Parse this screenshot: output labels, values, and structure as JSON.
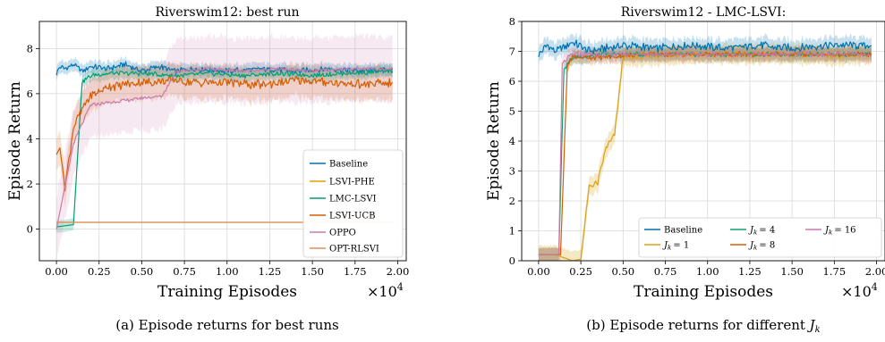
{
  "colors": {
    "Baseline": "#0072B2",
    "LSVI-PHE": "#E69F00",
    "LMC-LSVI": "#009E73",
    "LSVI-UCB": "#D55E00",
    "OPPO": "#CC79A7",
    "OPT-RLSVI": "#DE8F5F",
    "J1": "#D8A21A",
    "J4": "#14A070",
    "J8": "#D55E00",
    "J16": "#CC79A7"
  },
  "chart_data": [
    {
      "type": "line",
      "title": "Riverswim12: best run",
      "xlabel": "Training Episodes",
      "ylabel": "Episode Return",
      "x_multiplier": "×10",
      "x_multiplier_exp": "4",
      "xlim": [
        -0.1,
        2.05
      ],
      "ylim": [
        -1.4,
        9.2
      ],
      "xticks": [
        0.0,
        0.25,
        0.5,
        0.75,
        1.0,
        1.25,
        1.5,
        1.75,
        2.0
      ],
      "xtick_labels": [
        "0.00",
        "0.25",
        "0.50",
        "0.75",
        "1.00",
        "1.25",
        "1.50",
        "1.75",
        "2.00"
      ],
      "yticks": [
        0,
        2,
        4,
        6,
        8
      ],
      "ytick_labels": [
        "0",
        "2",
        "4",
        "6",
        "8"
      ],
      "grid": true,
      "legend_position": "lower-right",
      "series": [
        {
          "name": "Baseline",
          "points": [
            [
              0.0,
              6.9
            ],
            [
              0.02,
              7.2
            ],
            [
              0.05,
              7.1
            ],
            [
              0.1,
              7.3
            ],
            [
              0.15,
              7.0
            ],
            [
              0.2,
              7.2
            ],
            [
              0.3,
              7.1
            ],
            [
              0.4,
              7.3
            ],
            [
              0.5,
              7.0
            ],
            [
              0.6,
              7.2
            ],
            [
              0.7,
              7.0
            ],
            [
              0.8,
              7.1
            ],
            [
              1.0,
              7.0
            ],
            [
              1.2,
              7.1
            ],
            [
              1.4,
              7.0
            ],
            [
              1.6,
              7.1
            ],
            [
              1.8,
              7.0
            ],
            [
              1.97,
              7.1
            ]
          ]
        },
        {
          "name": "LSVI-PHE",
          "points": [
            [
              0.0,
              0.3
            ],
            [
              0.05,
              0.3
            ],
            [
              0.5,
              0.3
            ],
            [
              1.0,
              0.3
            ],
            [
              1.5,
              0.3
            ],
            [
              1.97,
              0.3
            ]
          ]
        },
        {
          "name": "LMC-LSVI",
          "points": [
            [
              0.0,
              0.1
            ],
            [
              0.1,
              0.2
            ],
            [
              0.15,
              6.5
            ],
            [
              0.2,
              6.8
            ],
            [
              0.3,
              6.9
            ],
            [
              0.5,
              6.9
            ],
            [
              0.7,
              6.8
            ],
            [
              0.9,
              6.9
            ],
            [
              1.1,
              6.8
            ],
            [
              1.3,
              6.9
            ],
            [
              1.5,
              6.8
            ],
            [
              1.7,
              6.9
            ],
            [
              1.97,
              7.0
            ]
          ]
        },
        {
          "name": "LSVI-UCB",
          "points": [
            [
              0.0,
              3.3
            ],
            [
              0.02,
              3.6
            ],
            [
              0.05,
              1.9
            ],
            [
              0.1,
              4.5
            ],
            [
              0.15,
              5.3
            ],
            [
              0.2,
              5.9
            ],
            [
              0.3,
              6.3
            ],
            [
              0.4,
              6.4
            ],
            [
              0.5,
              6.5
            ],
            [
              0.6,
              6.5
            ],
            [
              0.7,
              6.6
            ],
            [
              0.8,
              6.5
            ],
            [
              1.0,
              6.5
            ],
            [
              1.2,
              6.4
            ],
            [
              1.4,
              6.6
            ],
            [
              1.6,
              6.5
            ],
            [
              1.8,
              6.4
            ],
            [
              1.97,
              6.5
            ]
          ]
        },
        {
          "name": "OPPO",
          "points": [
            [
              0.0,
              0.0
            ],
            [
              0.1,
              3.8
            ],
            [
              0.2,
              5.5
            ],
            [
              0.3,
              5.6
            ],
            [
              0.4,
              5.7
            ],
            [
              0.5,
              5.8
            ],
            [
              0.62,
              5.9
            ],
            [
              0.7,
              7.0
            ],
            [
              0.9,
              7.1
            ],
            [
              1.1,
              7.0
            ],
            [
              1.3,
              7.1
            ],
            [
              1.5,
              7.0
            ],
            [
              1.7,
              7.1
            ],
            [
              1.97,
              7.1
            ]
          ]
        },
        {
          "name": "OPT-RLSVI",
          "points": [
            [
              0.0,
              0.3
            ],
            [
              0.5,
              0.3
            ],
            [
              1.0,
              0.3
            ],
            [
              1.5,
              0.3
            ],
            [
              1.97,
              0.3
            ]
          ]
        }
      ]
    },
    {
      "type": "line",
      "title": "Riverswim12 - LMC-LSVI:",
      "xlabel": "Training Episodes",
      "ylabel": "Episode Return",
      "x_multiplier": "×10",
      "x_multiplier_exp": "4",
      "xlim": [
        -0.1,
        2.05
      ],
      "ylim": [
        0,
        8
      ],
      "xticks": [
        0.0,
        0.25,
        0.5,
        0.75,
        1.0,
        1.25,
        1.5,
        1.75,
        2.0
      ],
      "xtick_labels": [
        "0.00",
        "0.25",
        "0.50",
        "0.75",
        "1.00",
        "1.25",
        "1.50",
        "1.75",
        "2.00"
      ],
      "yticks": [
        0,
        1,
        2,
        3,
        4,
        5,
        6,
        7,
        8
      ],
      "ytick_labels": [
        "0",
        "1",
        "2",
        "3",
        "4",
        "5",
        "6",
        "7",
        "8"
      ],
      "grid": true,
      "legend_position": "lower-right",
      "series": [
        {
          "name": "Baseline",
          "points": [
            [
              0.0,
              6.9
            ],
            [
              0.05,
              7.2
            ],
            [
              0.1,
              7.0
            ],
            [
              0.2,
              7.3
            ],
            [
              0.3,
              7.0
            ],
            [
              0.5,
              7.2
            ],
            [
              0.7,
              7.1
            ],
            [
              0.9,
              7.2
            ],
            [
              1.1,
              7.1
            ],
            [
              1.3,
              7.2
            ],
            [
              1.5,
              7.1
            ],
            [
              1.7,
              7.2
            ],
            [
              1.97,
              7.2
            ]
          ]
        },
        {
          "name": "J_k = 1",
          "points": [
            [
              0.0,
              0.2
            ],
            [
              0.1,
              0.2
            ],
            [
              0.2,
              0.0
            ],
            [
              0.25,
              0.05
            ],
            [
              0.3,
              2.5
            ],
            [
              0.35,
              2.6
            ],
            [
              0.4,
              3.8
            ],
            [
              0.45,
              4.2
            ],
            [
              0.5,
              6.8
            ],
            [
              0.6,
              6.8
            ],
            [
              0.8,
              6.9
            ],
            [
              1.0,
              6.9
            ],
            [
              1.2,
              6.9
            ],
            [
              1.4,
              6.9
            ],
            [
              1.6,
              6.9
            ],
            [
              1.8,
              6.8
            ],
            [
              1.97,
              6.9
            ]
          ]
        },
        {
          "name": "J_k = 4",
          "points": [
            [
              0.0,
              0.2
            ],
            [
              0.12,
              0.2
            ],
            [
              0.15,
              6.4
            ],
            [
              0.2,
              6.8
            ],
            [
              0.4,
              6.9
            ],
            [
              0.6,
              6.9
            ],
            [
              0.8,
              6.9
            ],
            [
              1.0,
              6.9
            ],
            [
              1.2,
              6.9
            ],
            [
              1.4,
              6.9
            ],
            [
              1.6,
              6.9
            ],
            [
              1.8,
              6.9
            ],
            [
              1.97,
              6.9
            ]
          ]
        },
        {
          "name": "J_k = 8",
          "points": [
            [
              0.0,
              0.2
            ],
            [
              0.13,
              0.2
            ],
            [
              0.17,
              6.5
            ],
            [
              0.2,
              6.8
            ],
            [
              0.4,
              6.8
            ],
            [
              0.6,
              6.9
            ],
            [
              0.8,
              6.9
            ],
            [
              1.0,
              6.9
            ],
            [
              1.2,
              6.9
            ],
            [
              1.4,
              6.9
            ],
            [
              1.6,
              6.9
            ],
            [
              1.8,
              6.9
            ],
            [
              1.97,
              6.9
            ]
          ]
        },
        {
          "name": "J_k = 16",
          "points": [
            [
              0.0,
              0.2
            ],
            [
              0.12,
              0.2
            ],
            [
              0.14,
              6.6
            ],
            [
              0.2,
              6.9
            ],
            [
              0.4,
              6.9
            ],
            [
              0.6,
              6.9
            ],
            [
              0.8,
              6.9
            ],
            [
              1.0,
              6.9
            ],
            [
              1.2,
              6.9
            ],
            [
              1.4,
              6.9
            ],
            [
              1.6,
              6.9
            ],
            [
              1.8,
              6.9
            ],
            [
              1.97,
              6.9
            ]
          ]
        }
      ]
    }
  ],
  "legend1": {
    "entries": [
      "Baseline",
      "LSVI-PHE",
      "LMC-LSVI",
      "LSVI-UCB",
      "OPPO",
      "OPT-RLSVI"
    ]
  },
  "legend2": {
    "baseline": "Baseline",
    "j_letter": "J",
    "j_sub": "k",
    "j_labels": [
      "= 1",
      "= 4",
      "= 8",
      "= 16"
    ]
  },
  "captions": {
    "a": "(a) Episode returns for best runs",
    "b_prefix": "(b) Episode returns for different ",
    "b_symbol": "J",
    "b_sub": "k"
  }
}
